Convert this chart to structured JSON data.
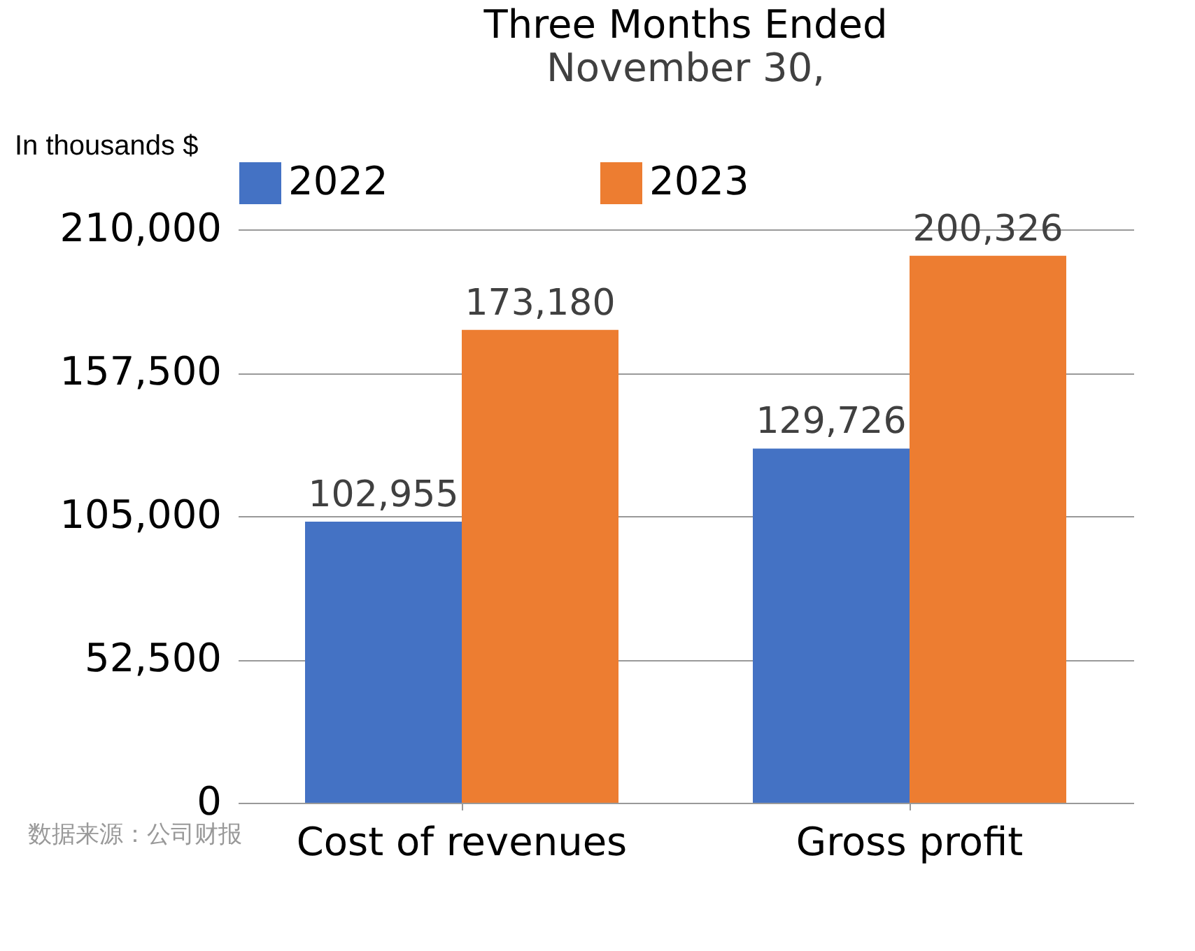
{
  "chart_data": {
    "type": "bar",
    "title": "Three Months Ended",
    "subtitle": "November 30,",
    "ylabel": "In thousands $",
    "categories": [
      "Cost of revenues",
      "Gross profit"
    ],
    "series": [
      {
        "name": "2022",
        "color": "#4472c4",
        "values": [
          102955,
          129726
        ],
        "value_labels": [
          "102,955",
          "129,726"
        ]
      },
      {
        "name": "2023",
        "color": "#ed7d31",
        "values": [
          173180,
          200326
        ],
        "value_labels": [
          "173,180",
          "200,326"
        ]
      }
    ],
    "ylim": [
      0,
      210000
    ],
    "yticks": [
      0,
      {
        "value": 52500,
        "label": "52,500"
      },
      {
        "value": 105000,
        "label": "105,000"
      },
      {
        "value": 157500,
        "label": "157,500"
      },
      {
        "value": 210000,
        "label": "210,000"
      }
    ],
    "grid": "y",
    "legend": "top",
    "annotations": [
      "数据来源：公司财报"
    ]
  }
}
